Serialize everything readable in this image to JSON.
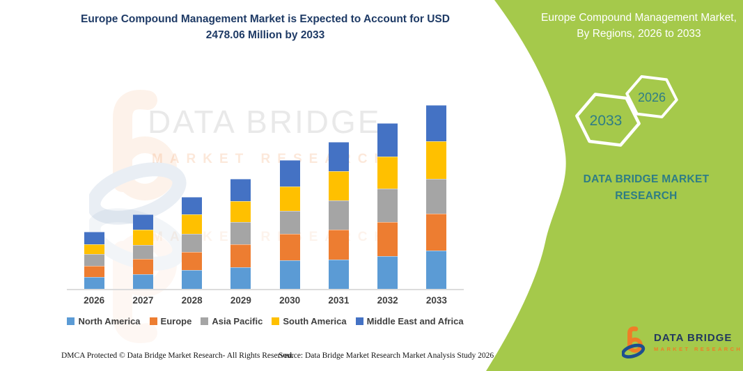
{
  "main_title": "Europe Compound Management Market is Expected to Account for USD 2478.06 Million by 2033",
  "side_panel": {
    "title": "Europe Compound Management Market, By Regions, 2026 to 2033",
    "hexagons": [
      {
        "label": "2033"
      },
      {
        "label": "2026"
      }
    ],
    "brand_text": "DATA BRIDGE MARKET RESEARCH",
    "background_color": "#a5c94b",
    "accent_teal": "#2e7d85"
  },
  "watermark": {
    "line1": "DATA BRIDGE",
    "line2": "MARKET RESEARCH"
  },
  "logo": {
    "name": "DATA BRIDGE",
    "sub": "MARKET RESEARCH"
  },
  "footer": {
    "left": "DMCA Protected © Data Bridge Market Research-  All Rights Reserved.",
    "source": "Source: Data Bridge Market Research  Market Analysis Study 2026"
  },
  "chart_data": {
    "type": "bar",
    "stacked": true,
    "title": "Europe Compound Management Market, By Regions, 2026 to 2033",
    "unit": "USD Million",
    "categories": [
      "2026",
      "2027",
      "2028",
      "2029",
      "2030",
      "2031",
      "2032",
      "2033"
    ],
    "series": [
      {
        "name": "North America",
        "color": "#5b9bd5",
        "values": [
          160,
          197,
          254,
          291,
          385,
          394,
          441,
          516
        ]
      },
      {
        "name": "Europe",
        "color": "#ed7d31",
        "values": [
          150,
          207,
          244,
          310,
          357,
          404,
          460,
          498
        ]
      },
      {
        "name": "Asia Pacific",
        "color": "#a5a5a5",
        "values": [
          158,
          188,
          244,
          300,
          310,
          394,
          451,
          470
        ]
      },
      {
        "name": "South America",
        "color": "#ffc000",
        "values": [
          132,
          207,
          263,
          282,
          329,
          394,
          432,
          507
        ]
      },
      {
        "name": "Middle East and Africa",
        "color": "#4472c4",
        "values": [
          170,
          207,
          235,
          300,
          357,
          394,
          451,
          487.06
        ]
      }
    ],
    "totals": [
      770,
      1006,
      1240,
      1483,
      1738,
      1980,
      2235,
      2478.06
    ],
    "highlight_total_2033": 2478.06,
    "grid": false,
    "y_axis_visible": false,
    "legend_position": "bottom"
  }
}
